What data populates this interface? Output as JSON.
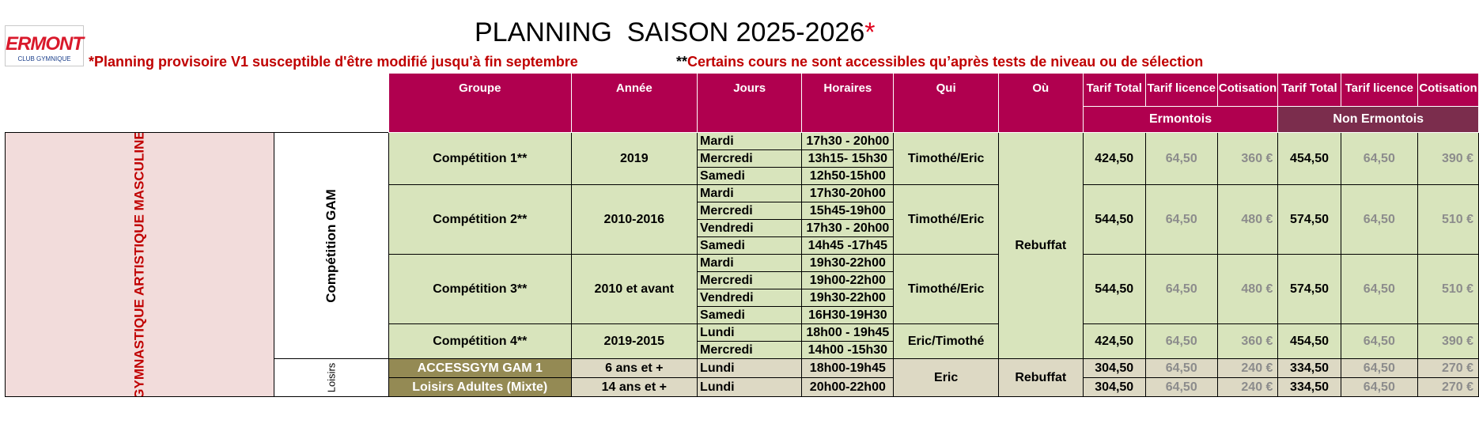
{
  "logo": {
    "name": "ERMONT",
    "subtitle": "CLUB GYMNIQUE"
  },
  "title": {
    "text": "PLANNING  SAISON 2025-2026",
    "star": "*"
  },
  "notes": {
    "provisional": "*Planning provisoire V1 susceptible d'être modifié jusqu'à fin septembre",
    "selection_stars": "**",
    "selection_text": "Certains cours ne sont accessibles qu’après tests de niveau ou de sélection"
  },
  "headers": {
    "groupe": "Groupe",
    "annee": "Année",
    "jours": "Jours",
    "horaires": "Horaires",
    "qui": "Qui",
    "ou": "Où",
    "tarif_total": "Tarif Total",
    "tarif_licence": "Tarif licence",
    "cotisation": "Cotisation",
    "ermontois": "Ermontois",
    "non_ermontois": "Non Ermontois"
  },
  "side_labels": {
    "discipline": "GYMNASTIQUE ARTISTIQUE MASCULINE",
    "competition": "Compétition GAM",
    "loisirs": "Loisirs"
  },
  "groups": [
    {
      "groupe": "Compétition 1**",
      "annee": "2019",
      "qui": "Timothé/Eric",
      "sessions": [
        {
          "jour": "Mardi",
          "horaire": "17h30 - 20h00"
        },
        {
          "jour": "Mercredi",
          "horaire": "13h15- 15h30"
        },
        {
          "jour": "Samedi",
          "horaire": "12h50-15h00"
        }
      ],
      "erm": {
        "total": "424,50",
        "licence": "64,50",
        "cotisation": "360 €"
      },
      "non": {
        "total": "454,50",
        "licence": "64,50",
        "cotisation": "390 €"
      }
    },
    {
      "groupe": "Compétition 2**",
      "annee": "2010-2016",
      "qui": "Timothé/Eric",
      "sessions": [
        {
          "jour": "Mardi",
          "horaire": "17h30-20h00"
        },
        {
          "jour": "Mercredi",
          "horaire": "15h45-19h00"
        },
        {
          "jour": "Vendredi",
          "horaire": "17h30 - 20h00"
        },
        {
          "jour": "Samedi",
          "horaire": "14h45 -17h45"
        }
      ],
      "erm": {
        "total": "544,50",
        "licence": "64,50",
        "cotisation": "480 €"
      },
      "non": {
        "total": "574,50",
        "licence": "64,50",
        "cotisation": "510 €"
      }
    },
    {
      "groupe": "Compétition 3**",
      "annee": "2010 et avant",
      "qui": "Timothé/Eric",
      "sessions": [
        {
          "jour": "Mardi",
          "horaire": "19h30-22h00"
        },
        {
          "jour": "Mercredi",
          "horaire": "19h00-22h00"
        },
        {
          "jour": "Vendredi",
          "horaire": "19h30-22h00"
        },
        {
          "jour": "Samedi",
          "horaire": "16H30-19H30"
        }
      ],
      "erm": {
        "total": "544,50",
        "licence": "64,50",
        "cotisation": "480 €"
      },
      "non": {
        "total": "574,50",
        "licence": "64,50",
        "cotisation": "510 €"
      }
    },
    {
      "groupe": "Compétition 4**",
      "annee": "2019-2015",
      "qui": "Eric/Timothé",
      "sessions": [
        {
          "jour": "Lundi",
          "horaire": "18h00 - 19h45"
        },
        {
          "jour": "Mercredi",
          "horaire": "14h00 -15h30"
        }
      ],
      "erm": {
        "total": "424,50",
        "licence": "64,50",
        "cotisation": "360 €"
      },
      "non": {
        "total": "454,50",
        "licence": "64,50",
        "cotisation": "390 €"
      }
    }
  ],
  "competition_ou": "Rebuffat",
  "loisirs": [
    {
      "groupe": "ACCESSGYM GAM 1",
      "annee": "6 ans  et  +",
      "jour": "Lundi",
      "horaire": "18h00-19h45",
      "erm": {
        "total": "304,50",
        "licence": "64,50",
        "cotisation": "240 €"
      },
      "non": {
        "total": "334,50",
        "licence": "64,50",
        "cotisation": "270 €"
      }
    },
    {
      "groupe": "Loisirs Adultes (Mixte)",
      "annee": "14 ans et +",
      "jour": "Lundi",
      "horaire": "20h00-22h00",
      "erm": {
        "total": "304,50",
        "licence": "64,50",
        "cotisation": "240 €"
      },
      "non": {
        "total": "334,50",
        "licence": "64,50",
        "cotisation": "270 €"
      }
    }
  ],
  "loisirs_qui": "Eric",
  "loisirs_ou": "Rebuffat",
  "colors": {
    "header": "#b0004f",
    "non_ermontois": "#7b2d4d",
    "green": "#d8e4bc",
    "beige": "#ddd9c4",
    "olive": "#948a54",
    "note_red": "#c00000"
  }
}
